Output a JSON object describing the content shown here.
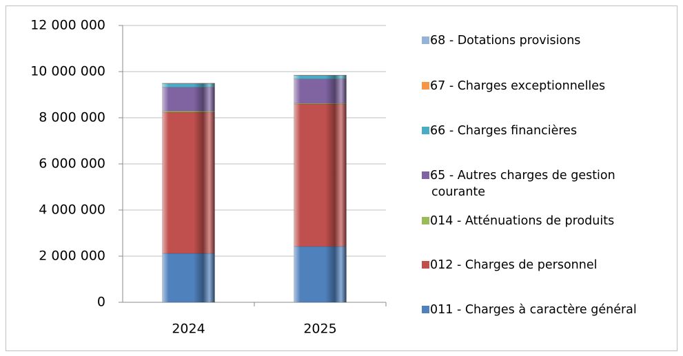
{
  "chart_data": {
    "type": "stacked_bar",
    "categories": [
      "2024",
      "2025"
    ],
    "series": [
      {
        "name": "011 - Charges à caractère général",
        "color": "#4f81bd",
        "values": [
          2120000,
          2420000
        ]
      },
      {
        "name": "012 - Charges de personnel",
        "color": "#c0504d",
        "values": [
          6120000,
          6180000
        ]
      },
      {
        "name": "014 - Atténuations de produits",
        "color": "#9bbb59",
        "values": [
          50000,
          30000
        ]
      },
      {
        "name": "65 - Autres charges de gestion courante",
        "color": "#8064a2",
        "values": [
          1030000,
          1050000
        ]
      },
      {
        "name": "66 - Charges financières",
        "color": "#4bacc6",
        "values": [
          150000,
          150000
        ]
      },
      {
        "name": "67 - Charges exceptionnelles",
        "color": "#f79646",
        "values": [
          10000,
          10000
        ]
      },
      {
        "name": "68 - Dotations provisions",
        "color": "#95b3d7",
        "values": [
          20000,
          10000
        ]
      }
    ],
    "ylim": [
      0,
      12000000
    ],
    "yticks": [
      0,
      {
        "value": 2000000,
        "label": "2 000 000"
      },
      {
        "value": 4000000,
        "label": "4 000 000"
      },
      {
        "value": 6000000,
        "label": "6 000 000"
      },
      {
        "value": 8000000,
        "label": "8 000 000"
      },
      {
        "value": 10000000,
        "label": "10 000 000"
      },
      {
        "value": 12000000,
        "label": "12 000 000"
      }
    ],
    "grid": true,
    "legend": "right"
  }
}
